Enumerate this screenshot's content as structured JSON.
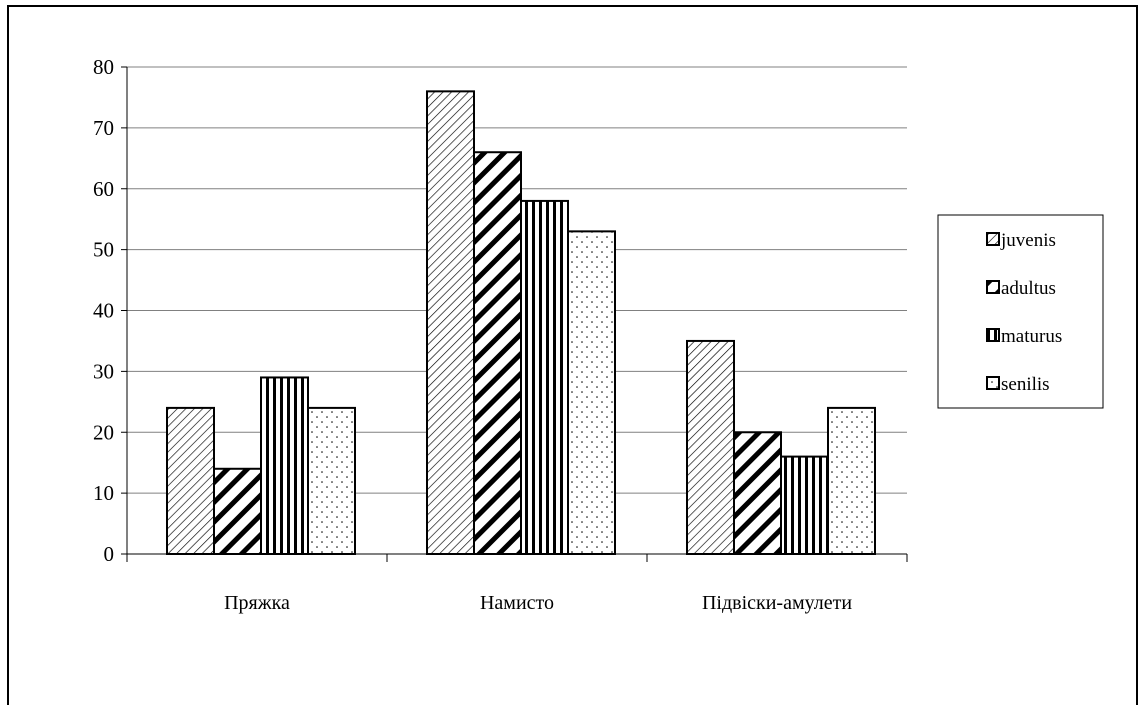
{
  "chart_data": {
    "type": "bar",
    "title": "",
    "xlabel": "",
    "ylabel": "",
    "categories": [
      "Пряжка",
      "Намисто",
      "Підвіски-амулети"
    ],
    "series": [
      {
        "name": "juvenis",
        "values": [
          24,
          76,
          35
        ],
        "pattern": "fine-diagonal"
      },
      {
        "name": "adultus",
        "values": [
          14,
          66,
          20
        ],
        "pattern": "bold-diagonal"
      },
      {
        "name": "maturus",
        "values": [
          29,
          58,
          16
        ],
        "pattern": "vertical-lines"
      },
      {
        "name": "senilis",
        "values": [
          24,
          53,
          24
        ],
        "pattern": "dots"
      }
    ],
    "ylim": [
      0,
      80
    ],
    "yticks": [
      0,
      10,
      20,
      30,
      40,
      50,
      60,
      70,
      80
    ],
    "grid": true,
    "legend_position": "right",
    "colors": {
      "bar_stroke": "#000000",
      "pattern_ink": "#000000",
      "background": "#ffffff",
      "grid": "#808080"
    }
  }
}
